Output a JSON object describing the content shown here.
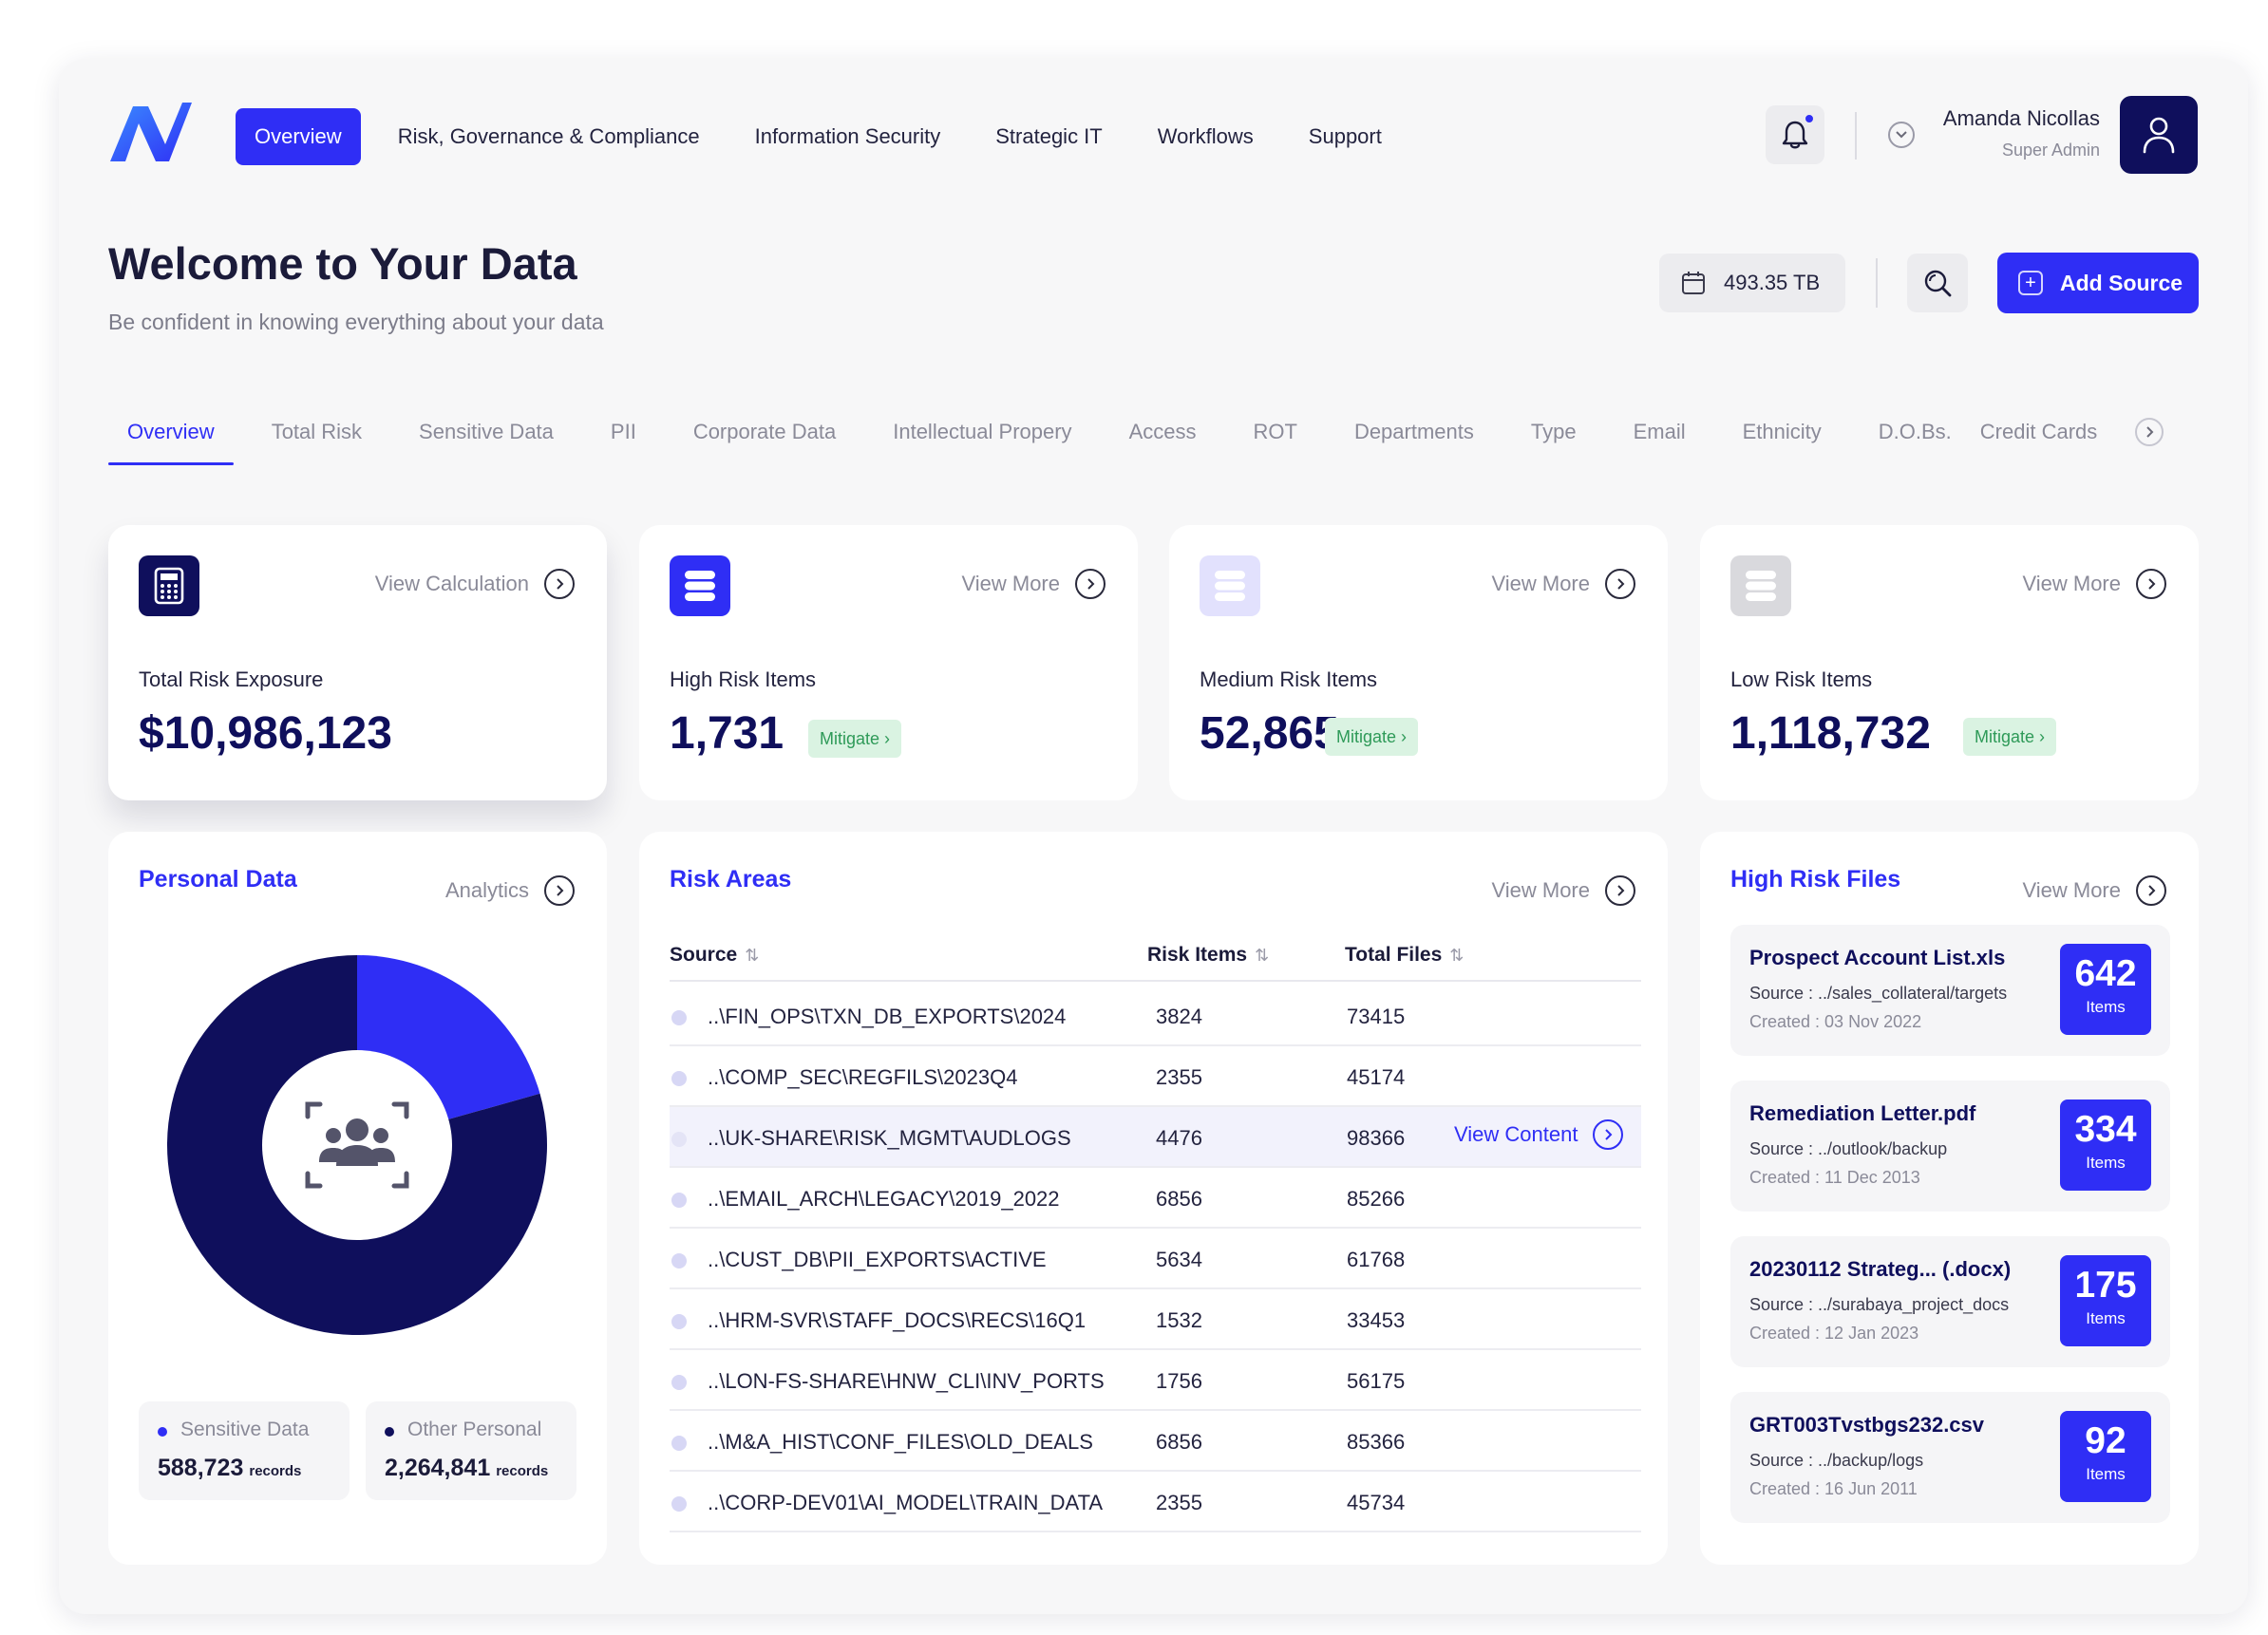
{
  "nav": {
    "tabs": [
      "Overview",
      "Risk, Governance & Compliance",
      "Information Security",
      "Strategic IT",
      "Workflows",
      "Support"
    ]
  },
  "user": {
    "name": "Amanda Nicollas",
    "role": "Super Admin"
  },
  "header": {
    "title": "Welcome to Your Data",
    "subtitle": "Be confident in knowing everything about your data",
    "storage": "493.35 TB",
    "add_source": "Add Source"
  },
  "sub_tabs": [
    "Overview",
    "Total Risk",
    "Sensitive Data",
    "PII",
    "Corporate Data",
    "Intellectual Propery",
    "Access",
    "ROT",
    "Departments",
    "Type",
    "Email",
    "Ethnicity",
    "D.O.Bs.",
    "Credit Cards"
  ],
  "stats": [
    {
      "link": "View Calculation",
      "label": "Total Risk Exposure",
      "value": "$10,986,123",
      "mitigate": ""
    },
    {
      "link": "View More",
      "label": "High Risk Items",
      "value": "1,731",
      "mitigate": "Mitigate ›"
    },
    {
      "link": "View More",
      "label": "Medium Risk Items",
      "value": "52,865",
      "mitigate": "Mitigate ›"
    },
    {
      "link": "View More",
      "label": "Low Risk Items",
      "value": "1,118,732",
      "mitigate": "Mitigate ›"
    }
  ],
  "colors": {
    "accent": "#2f2ef5",
    "navy": "#0f0f5c",
    "green": "#2e9a58"
  },
  "personal": {
    "title": "Personal Data",
    "link": "Analytics",
    "legend": [
      {
        "name": "Sensitive Data",
        "value": "588,723",
        "unit": "records",
        "color": "#2f2ef5"
      },
      {
        "name": "Other Personal",
        "value": "2,264,841",
        "unit": "records",
        "color": "#0f0f5c"
      }
    ]
  },
  "chart_data": {
    "type": "pie",
    "categories": [
      "Sensitive Data",
      "Other Personal"
    ],
    "values": [
      588723,
      2264841
    ],
    "colors": [
      "#2f2ef5",
      "#0f0f5c"
    ]
  },
  "risk_areas": {
    "title": "Risk Areas",
    "link": "View More",
    "headers": [
      "Source",
      "Risk Items",
      "Total Files"
    ],
    "view_content": "View Content",
    "rows": [
      {
        "source": "..\\FIN_OPS\\TXN_DB_EXPORTS\\2024",
        "items": "3824",
        "files": "73415"
      },
      {
        "source": "..\\COMP_SEC\\REGFILS\\2023Q4",
        "items": "2355",
        "files": "45174"
      },
      {
        "source": "..\\UK-SHARE\\RISK_MGMT\\AUDLOGS",
        "items": "4476",
        "files": "98366"
      },
      {
        "source": "..\\EMAIL_ARCH\\LEGACY\\2019_2022",
        "items": "6856",
        "files": "85266"
      },
      {
        "source": "..\\CUST_DB\\PII_EXPORTS\\ACTIVE",
        "items": "5634",
        "files": "61768"
      },
      {
        "source": "..\\HRM-SVR\\STAFF_DOCS\\RECS\\16Q1",
        "items": "1532",
        "files": "33453"
      },
      {
        "source": "..\\LON-FS-SHARE\\HNW_CLI\\INV_PORTS",
        "items": "1756",
        "files": "56175"
      },
      {
        "source": "..\\M&A_HIST\\CONF_FILES\\OLD_DEALS",
        "items": "6856",
        "files": "85366"
      },
      {
        "source": "..\\CORP-DEV01\\AI_MODEL\\TRAIN_DATA",
        "items": "2355",
        "files": "45734"
      }
    ]
  },
  "high_risk_files": {
    "title": "High Risk Files",
    "link": "View More",
    "files": [
      {
        "name": "Prospect Account List.xls",
        "source": "Source : ../sales_collateral/targets",
        "created": "Created : 03 Nov 2022",
        "count": "642",
        "unit": "Items"
      },
      {
        "name": "Remediation Letter.pdf",
        "source": "Source : ../outlook/backup",
        "created": "Created : 11 Dec 2013",
        "count": "334",
        "unit": "Items"
      },
      {
        "name": "20230112 Strateg... (.docx)",
        "source": "Source : ../surabaya_project_docs",
        "created": "Created : 12 Jan 2023",
        "count": "175",
        "unit": "Items"
      },
      {
        "name": "GRT003Tvstbgs232.csv",
        "source": "Source : ../backup/logs",
        "created": "Created : 16 Jun 2011",
        "count": "92",
        "unit": "Items"
      }
    ]
  }
}
